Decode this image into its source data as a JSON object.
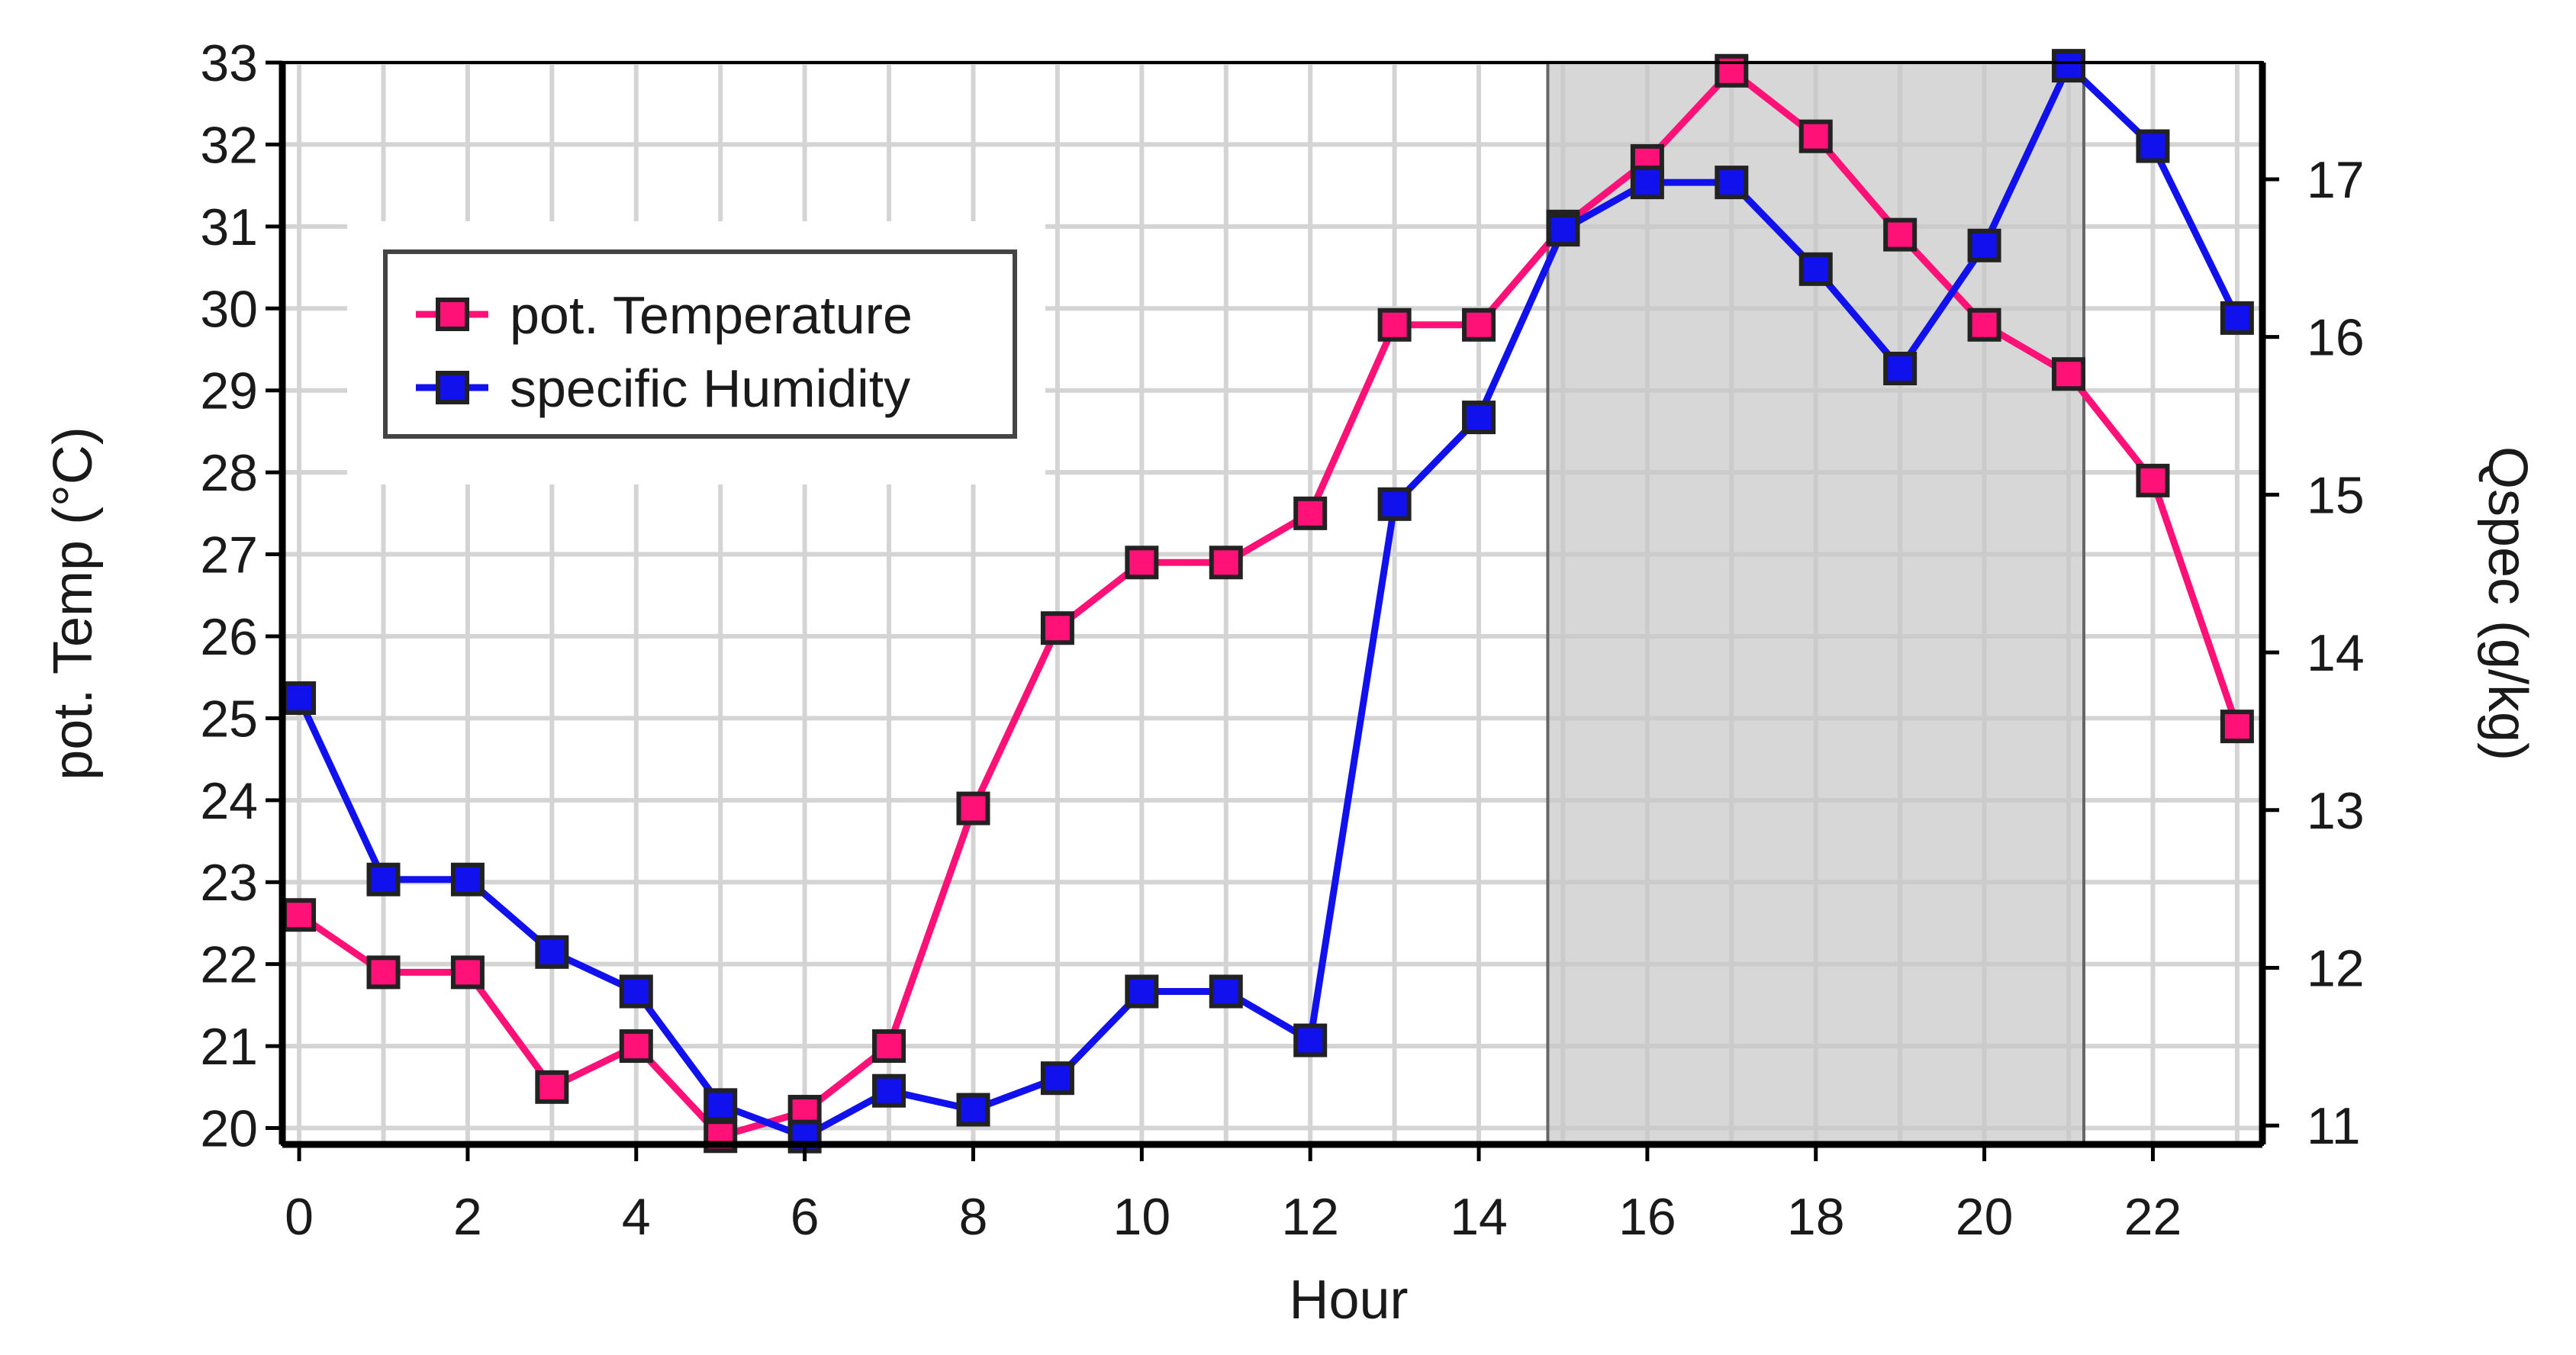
{
  "chart_data": {
    "type": "line",
    "title": "",
    "xlabel": "Hour",
    "ylabel_left": "pot. Temp (°C)",
    "ylabel_right": "Qspec (g/kg)",
    "x": [
      0,
      1,
      2,
      3,
      4,
      5,
      6,
      7,
      8,
      9,
      10,
      11,
      12,
      13,
      14,
      15,
      16,
      17,
      18,
      19,
      20,
      21,
      22,
      23
    ],
    "x_ticks": [
      "0",
      "2",
      "4",
      "6",
      "8",
      "10",
      "12",
      "14",
      "16",
      "18",
      "20",
      "22"
    ],
    "x_tick_values": [
      0,
      2,
      4,
      6,
      8,
      10,
      12,
      14,
      16,
      18,
      20,
      22
    ],
    "y_left_ticks": [
      "20",
      "21",
      "22",
      "23",
      "24",
      "25",
      "26",
      "27",
      "28",
      "29",
      "30",
      "31",
      "32",
      "33"
    ],
    "y_left_tick_values": [
      20,
      21,
      22,
      23,
      24,
      25,
      26,
      27,
      28,
      29,
      30,
      31,
      32,
      33
    ],
    "y_right_ticks": [
      "11",
      "12",
      "13",
      "14",
      "15",
      "16",
      "17"
    ],
    "y_right_tick_values": [
      11,
      12,
      13,
      14,
      15,
      16,
      17
    ],
    "xlim": [
      -0.2,
      23.3
    ],
    "ylim_left": [
      19.8,
      33.0
    ],
    "ylim_right": [
      10.88,
      17.74
    ],
    "grid": true,
    "legend_position": "top-left",
    "highlight_range": [
      15,
      21
    ],
    "series": [
      {
        "name": "pot. Temperature",
        "axis": "left",
        "color": "#ff1177",
        "values": [
          22.6,
          21.9,
          21.9,
          20.5,
          21.0,
          19.9,
          20.2,
          21.0,
          23.9,
          26.1,
          26.9,
          26.9,
          27.5,
          29.8,
          29.8,
          31.0,
          31.8,
          32.9,
          32.1,
          30.9,
          29.8,
          29.2,
          27.9,
          24.9
        ]
      },
      {
        "name": "specific Humidity",
        "axis": "right",
        "color": "#1111ee",
        "values": [
          13.71,
          12.56,
          12.56,
          12.1,
          11.85,
          11.13,
          10.93,
          11.22,
          11.1,
          11.3,
          11.85,
          11.85,
          11.54,
          14.94,
          15.49,
          16.68,
          16.98,
          16.98,
          16.43,
          15.8,
          16.58,
          17.72,
          17.21,
          16.12
        ]
      }
    ]
  }
}
